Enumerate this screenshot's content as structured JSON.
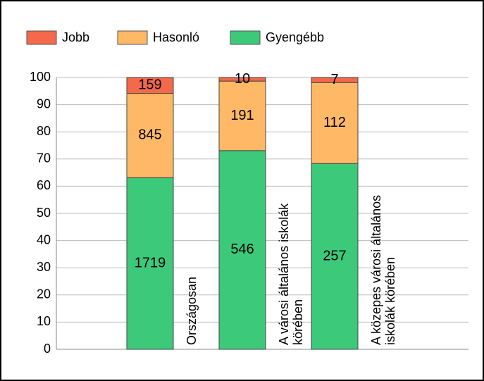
{
  "chart_data": {
    "type": "bar",
    "stacked": "percent",
    "categories": [
      "Országosan",
      "A városi általános iskolák körében",
      "A közepes városi általános iskolák körében"
    ],
    "series": [
      {
        "name": "Gyengébb",
        "color": "#3cc97a",
        "values": [
          1719,
          546,
          257
        ]
      },
      {
        "name": "Hasonló",
        "color": "#ffb866",
        "values": [
          845,
          191,
          112
        ]
      },
      {
        "name": "Jobb",
        "color": "#f4694a",
        "values": [
          159,
          10,
          7
        ]
      }
    ],
    "legend_order": [
      2,
      1,
      0
    ],
    "ylim": [
      0,
      100
    ],
    "yticks": [
      0,
      10,
      20,
      30,
      40,
      50,
      60,
      70,
      80,
      90,
      100
    ],
    "grid": true
  }
}
